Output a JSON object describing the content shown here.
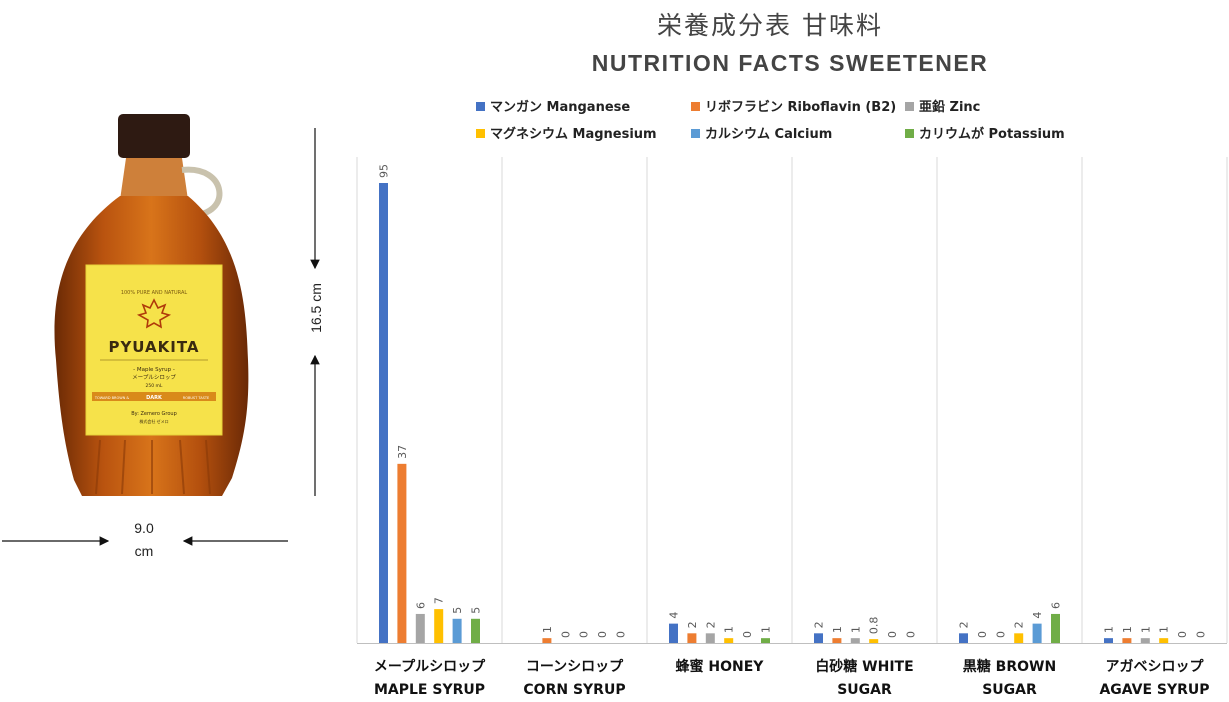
{
  "bottle": {
    "brand": "PYUAKITA",
    "arc_text": "100% PURE AND NATURAL",
    "product": "- Maple Syrup -",
    "product_jp": "メープルシロップ",
    "volume": "250 mL",
    "grade": "DARK",
    "grade_left": "TOWARD BROWN &",
    "grade_right": "ROBUST TASTE",
    "maker": "By: Zemero Group",
    "maker_jp": "株式会社 ゼメロ"
  },
  "dimensions": {
    "height": "16.5 cm",
    "width_value": "9.0",
    "width_unit": "cm"
  },
  "colors": {
    "manganese": "#4472c4",
    "riboflavin": "#ed7d31",
    "zinc": "#a5a5a5",
    "magnesium": "#ffc000",
    "calcium": "#5b9bd5",
    "potassium": "#70ad47"
  },
  "chart_data": {
    "type": "bar",
    "title": "栄養成分表 甘味料",
    "subtitle": "NUTRITION FACTS SWEETENER",
    "categories": [
      {
        "jp": "メープルシロップ",
        "en": "MAPLE SYRUP"
      },
      {
        "jp": "コーンシロップ",
        "en": "CORN SYRUP"
      },
      {
        "jp": "蜂蜜 HONEY",
        "en": ""
      },
      {
        "jp": "白砂糖 WHITE",
        "en": "SUGAR"
      },
      {
        "jp": "黒糖 BROWN",
        "en": "SUGAR"
      },
      {
        "jp": "アガベシロップ",
        "en": "AGAVE SYRUP"
      }
    ],
    "series": [
      {
        "name": "マンガン Manganese",
        "color": "#4472c4",
        "values": [
          95,
          0,
          4,
          2,
          2,
          1
        ],
        "labels": [
          "95",
          "",
          "4",
          "2",
          "2",
          "1"
        ]
      },
      {
        "name": "リボフラビン Riboflavin (B2)",
        "color": "#ed7d31",
        "values": [
          37,
          1,
          2,
          1,
          0,
          1
        ],
        "labels": [
          "37",
          "1",
          "2",
          "1",
          "0",
          "1"
        ]
      },
      {
        "name": "亜鉛 Zinc",
        "color": "#a5a5a5",
        "values": [
          6,
          0,
          2,
          1,
          0,
          1
        ],
        "labels": [
          "6",
          "0",
          "2",
          "1",
          "0",
          "1"
        ]
      },
      {
        "name": "マグネシウム Magnesium",
        "color": "#ffc000",
        "values": [
          7,
          0,
          1,
          0.8,
          2,
          1
        ],
        "labels": [
          "7",
          "0",
          "1",
          "0.8",
          "2",
          "1"
        ]
      },
      {
        "name": "カルシウム Calcium",
        "color": "#5b9bd5",
        "values": [
          5,
          0,
          0,
          0,
          4,
          0
        ],
        "labels": [
          "5",
          "0",
          "0",
          "0",
          "4",
          "0"
        ]
      },
      {
        "name": "カリウムが Potassium",
        "color": "#70ad47",
        "values": [
          5,
          0,
          1,
          0,
          6,
          0
        ],
        "labels": [
          "5",
          "0",
          "1",
          "0",
          "6",
          "0"
        ]
      }
    ],
    "grid": true,
    "legend": "top"
  }
}
